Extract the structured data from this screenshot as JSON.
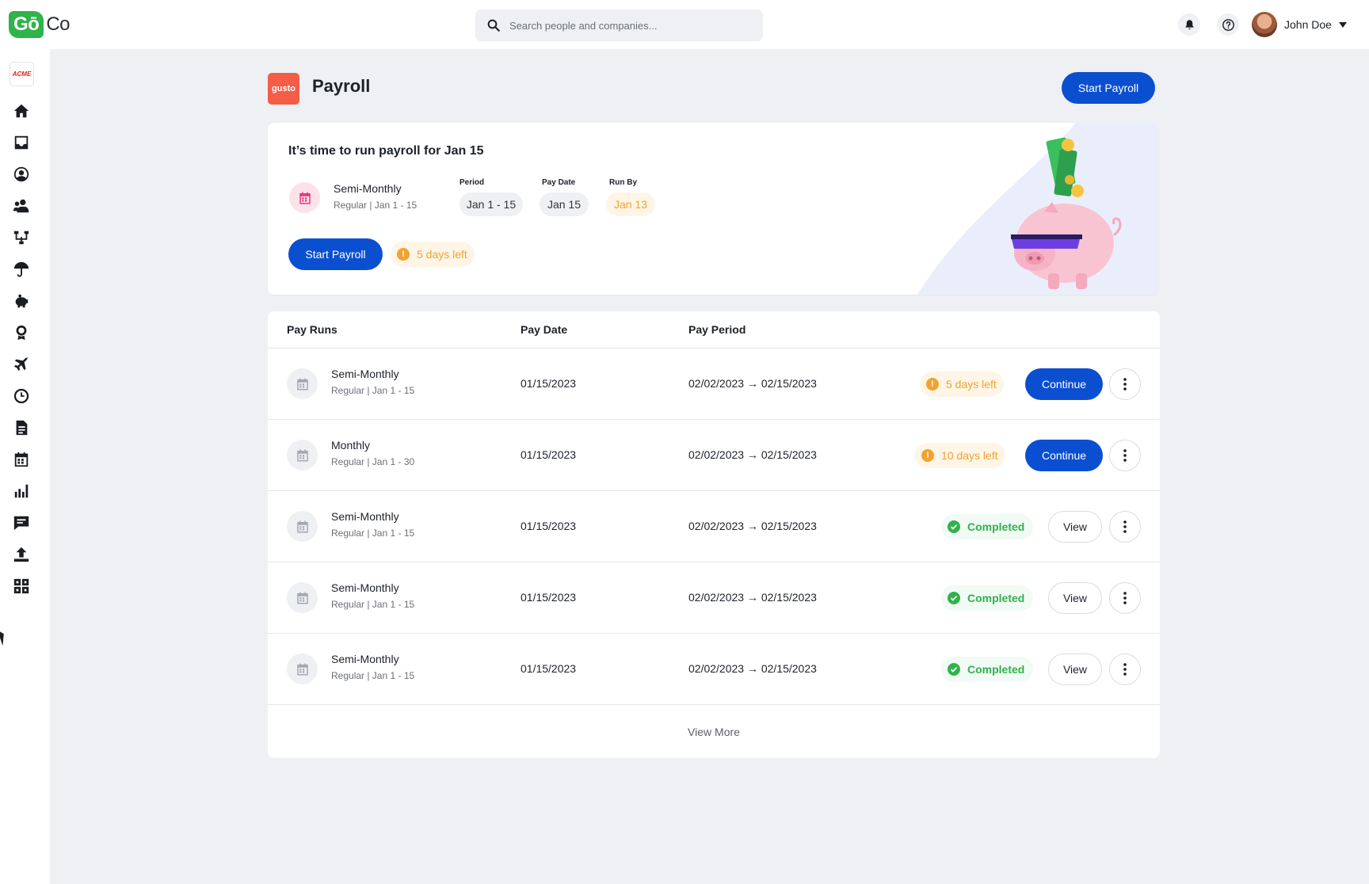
{
  "brand": {
    "logo_left": "Gō",
    "logo_right": "Co"
  },
  "search": {
    "placeholder": "Search people and companies..."
  },
  "user": {
    "name": "John Doe"
  },
  "sidebar": {
    "company_logo": "ACME",
    "items": [
      "home-icon",
      "inbox-icon",
      "profile-icon",
      "people-icon",
      "org-chart-icon",
      "benefits-icon",
      "payroll-icon",
      "awards-icon",
      "time-off-icon",
      "time-tracking-icon",
      "documents-icon",
      "calendar-icon",
      "reports-icon",
      "messages-icon",
      "upload-icon",
      "apps-icon"
    ]
  },
  "header": {
    "provider": "gusto",
    "title": "Payroll",
    "start_button": "Start Payroll"
  },
  "card": {
    "title": "It’s time to run payroll for Jan 15",
    "run_name": "Semi-Monthly",
    "run_sub": "Regular | Jan 1 - 15",
    "period_label": "Period",
    "period_value": "Jan 1 - 15",
    "pay_date_label": "Pay Date",
    "pay_date_value": "Jan 15",
    "run_by_label": "Run By",
    "run_by_value": "Jan 13",
    "start_button": "Start Payroll",
    "days_left": "5 days left"
  },
  "table": {
    "headers": [
      "Pay Runs",
      "Pay Date",
      "Pay Period"
    ],
    "rows": [
      {
        "name": "Semi-Monthly",
        "sub": "Regular | Jan 1 - 15",
        "pay_date": "01/15/2023",
        "period": "02/02/2023 → 02/15/2023",
        "status": "5 days left",
        "action": "Continue"
      },
      {
        "name": "Monthly",
        "sub": "Regular | Jan 1 - 30",
        "pay_date": "01/15/2023",
        "period": "02/02/2023 → 02/15/2023",
        "status": "10 days left",
        "action": "Continue"
      },
      {
        "name": "Semi-Monthly",
        "sub": "Regular | Jan 1 - 15",
        "pay_date": "01/15/2023",
        "period": "02/02/2023 → 02/15/2023",
        "status": "Completed",
        "action": "View"
      },
      {
        "name": "Semi-Monthly",
        "sub": "Regular | Jan 1 - 15",
        "pay_date": "01/15/2023",
        "period": "02/02/2023 → 02/15/2023",
        "status": "Completed",
        "action": "View"
      },
      {
        "name": "Semi-Monthly",
        "sub": "Regular | Jan 1 - 15",
        "pay_date": "01/15/2023",
        "period": "02/02/2023 → 02/15/2023",
        "status": "Completed",
        "action": "View"
      }
    ],
    "view_more": "View More"
  },
  "colors": {
    "primary": "#0b4fd1",
    "brand_green": "#2fb34a",
    "warning": "#f2a230",
    "gusto": "#f45d48"
  }
}
